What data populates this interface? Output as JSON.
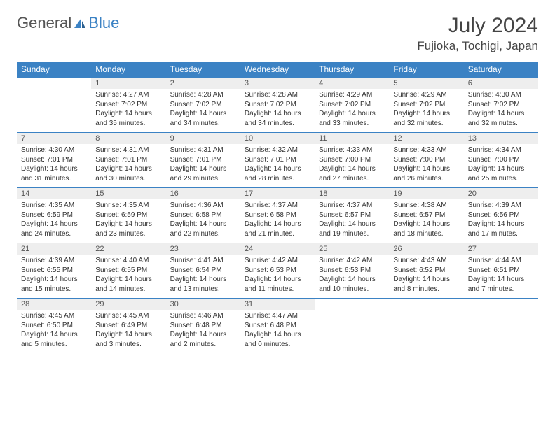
{
  "brand": {
    "part1": "General",
    "part2": "Blue"
  },
  "title": "July 2024",
  "location": "Fujioka, Tochigi, Japan",
  "colors": {
    "header_bg": "#3b82c4",
    "header_text": "#ffffff",
    "daynum_bg": "#eeeeee",
    "border": "#3b82c4",
    "text": "#333333",
    "background": "#ffffff"
  },
  "day_headers": [
    "Sunday",
    "Monday",
    "Tuesday",
    "Wednesday",
    "Thursday",
    "Friday",
    "Saturday"
  ],
  "weeks": [
    {
      "nums": [
        "",
        "1",
        "2",
        "3",
        "4",
        "5",
        "6"
      ],
      "cells": [
        null,
        {
          "sunrise": "Sunrise: 4:27 AM",
          "sunset": "Sunset: 7:02 PM",
          "daylight": "Daylight: 14 hours and 35 minutes."
        },
        {
          "sunrise": "Sunrise: 4:28 AM",
          "sunset": "Sunset: 7:02 PM",
          "daylight": "Daylight: 14 hours and 34 minutes."
        },
        {
          "sunrise": "Sunrise: 4:28 AM",
          "sunset": "Sunset: 7:02 PM",
          "daylight": "Daylight: 14 hours and 34 minutes."
        },
        {
          "sunrise": "Sunrise: 4:29 AM",
          "sunset": "Sunset: 7:02 PM",
          "daylight": "Daylight: 14 hours and 33 minutes."
        },
        {
          "sunrise": "Sunrise: 4:29 AM",
          "sunset": "Sunset: 7:02 PM",
          "daylight": "Daylight: 14 hours and 32 minutes."
        },
        {
          "sunrise": "Sunrise: 4:30 AM",
          "sunset": "Sunset: 7:02 PM",
          "daylight": "Daylight: 14 hours and 32 minutes."
        }
      ]
    },
    {
      "nums": [
        "7",
        "8",
        "9",
        "10",
        "11",
        "12",
        "13"
      ],
      "cells": [
        {
          "sunrise": "Sunrise: 4:30 AM",
          "sunset": "Sunset: 7:01 PM",
          "daylight": "Daylight: 14 hours and 31 minutes."
        },
        {
          "sunrise": "Sunrise: 4:31 AM",
          "sunset": "Sunset: 7:01 PM",
          "daylight": "Daylight: 14 hours and 30 minutes."
        },
        {
          "sunrise": "Sunrise: 4:31 AM",
          "sunset": "Sunset: 7:01 PM",
          "daylight": "Daylight: 14 hours and 29 minutes."
        },
        {
          "sunrise": "Sunrise: 4:32 AM",
          "sunset": "Sunset: 7:01 PM",
          "daylight": "Daylight: 14 hours and 28 minutes."
        },
        {
          "sunrise": "Sunrise: 4:33 AM",
          "sunset": "Sunset: 7:00 PM",
          "daylight": "Daylight: 14 hours and 27 minutes."
        },
        {
          "sunrise": "Sunrise: 4:33 AM",
          "sunset": "Sunset: 7:00 PM",
          "daylight": "Daylight: 14 hours and 26 minutes."
        },
        {
          "sunrise": "Sunrise: 4:34 AM",
          "sunset": "Sunset: 7:00 PM",
          "daylight": "Daylight: 14 hours and 25 minutes."
        }
      ]
    },
    {
      "nums": [
        "14",
        "15",
        "16",
        "17",
        "18",
        "19",
        "20"
      ],
      "cells": [
        {
          "sunrise": "Sunrise: 4:35 AM",
          "sunset": "Sunset: 6:59 PM",
          "daylight": "Daylight: 14 hours and 24 minutes."
        },
        {
          "sunrise": "Sunrise: 4:35 AM",
          "sunset": "Sunset: 6:59 PM",
          "daylight": "Daylight: 14 hours and 23 minutes."
        },
        {
          "sunrise": "Sunrise: 4:36 AM",
          "sunset": "Sunset: 6:58 PM",
          "daylight": "Daylight: 14 hours and 22 minutes."
        },
        {
          "sunrise": "Sunrise: 4:37 AM",
          "sunset": "Sunset: 6:58 PM",
          "daylight": "Daylight: 14 hours and 21 minutes."
        },
        {
          "sunrise": "Sunrise: 4:37 AM",
          "sunset": "Sunset: 6:57 PM",
          "daylight": "Daylight: 14 hours and 19 minutes."
        },
        {
          "sunrise": "Sunrise: 4:38 AM",
          "sunset": "Sunset: 6:57 PM",
          "daylight": "Daylight: 14 hours and 18 minutes."
        },
        {
          "sunrise": "Sunrise: 4:39 AM",
          "sunset": "Sunset: 6:56 PM",
          "daylight": "Daylight: 14 hours and 17 minutes."
        }
      ]
    },
    {
      "nums": [
        "21",
        "22",
        "23",
        "24",
        "25",
        "26",
        "27"
      ],
      "cells": [
        {
          "sunrise": "Sunrise: 4:39 AM",
          "sunset": "Sunset: 6:55 PM",
          "daylight": "Daylight: 14 hours and 15 minutes."
        },
        {
          "sunrise": "Sunrise: 4:40 AM",
          "sunset": "Sunset: 6:55 PM",
          "daylight": "Daylight: 14 hours and 14 minutes."
        },
        {
          "sunrise": "Sunrise: 4:41 AM",
          "sunset": "Sunset: 6:54 PM",
          "daylight": "Daylight: 14 hours and 13 minutes."
        },
        {
          "sunrise": "Sunrise: 4:42 AM",
          "sunset": "Sunset: 6:53 PM",
          "daylight": "Daylight: 14 hours and 11 minutes."
        },
        {
          "sunrise": "Sunrise: 4:42 AM",
          "sunset": "Sunset: 6:53 PM",
          "daylight": "Daylight: 14 hours and 10 minutes."
        },
        {
          "sunrise": "Sunrise: 4:43 AM",
          "sunset": "Sunset: 6:52 PM",
          "daylight": "Daylight: 14 hours and 8 minutes."
        },
        {
          "sunrise": "Sunrise: 4:44 AM",
          "sunset": "Sunset: 6:51 PM",
          "daylight": "Daylight: 14 hours and 7 minutes."
        }
      ]
    },
    {
      "nums": [
        "28",
        "29",
        "30",
        "31",
        "",
        "",
        ""
      ],
      "cells": [
        {
          "sunrise": "Sunrise: 4:45 AM",
          "sunset": "Sunset: 6:50 PM",
          "daylight": "Daylight: 14 hours and 5 minutes."
        },
        {
          "sunrise": "Sunrise: 4:45 AM",
          "sunset": "Sunset: 6:49 PM",
          "daylight": "Daylight: 14 hours and 3 minutes."
        },
        {
          "sunrise": "Sunrise: 4:46 AM",
          "sunset": "Sunset: 6:48 PM",
          "daylight": "Daylight: 14 hours and 2 minutes."
        },
        {
          "sunrise": "Sunrise: 4:47 AM",
          "sunset": "Sunset: 6:48 PM",
          "daylight": "Daylight: 14 hours and 0 minutes."
        },
        null,
        null,
        null
      ]
    }
  ]
}
